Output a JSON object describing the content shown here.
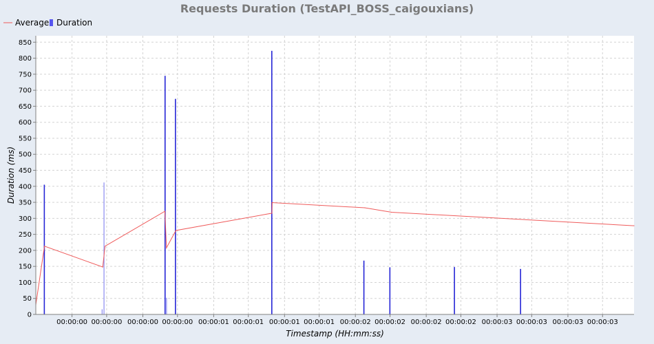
{
  "chart_data": {
    "type": "bar",
    "title": "Requests Duration (TestAPI_BOSS_caigouxians)",
    "xlabel": "Timestamp (HH:mm:ss)",
    "ylabel": "Duration (ms)",
    "ylim": [
      0,
      870
    ],
    "xlim": [
      0,
      3.8
    ],
    "yticks": [
      0,
      50,
      100,
      150,
      200,
      250,
      300,
      350,
      400,
      450,
      500,
      550,
      600,
      650,
      700,
      750,
      800,
      850
    ],
    "xticks": [
      0.23,
      0.45,
      0.68,
      0.9,
      1.13,
      1.35,
      1.58,
      1.8,
      2.03,
      2.25,
      2.48,
      2.7,
      2.93,
      3.15,
      3.38,
      3.6
    ],
    "xtick_labels": [
      "00:00:00",
      "00:00:00",
      "00:00:00",
      "00:00:00",
      "00:00:01",
      "00:00:01",
      "00:00:01",
      "00:00:01",
      "00:00:02",
      "00:00:02",
      "00:00:02",
      "00:00:02",
      "00:00:03",
      "00:00:03",
      "00:00:03",
      "00:00:03"
    ],
    "grid": true,
    "legend_position": "top-left",
    "series": [
      {
        "name": "Average",
        "type": "line",
        "color": "#ef5a5a",
        "x": [
          0.0,
          0.055,
          0.425,
          0.44,
          0.82,
          0.83,
          0.89,
          1.5,
          1.501,
          2.09,
          2.26,
          3.8
        ],
        "values": [
          30,
          213,
          148,
          213,
          322,
          208,
          262,
          316,
          349,
          333,
          319,
          277
        ]
      },
      {
        "name": "Duration",
        "type": "bar",
        "color": "#2424d6",
        "x": [
          0.055,
          0.423,
          0.435,
          0.822,
          0.832,
          0.888,
          1.5,
          2.085,
          2.25,
          2.66,
          3.08
        ],
        "values": [
          405,
          16,
          412,
          745,
          52,
          673,
          823,
          168,
          147,
          148,
          142
        ]
      }
    ]
  }
}
